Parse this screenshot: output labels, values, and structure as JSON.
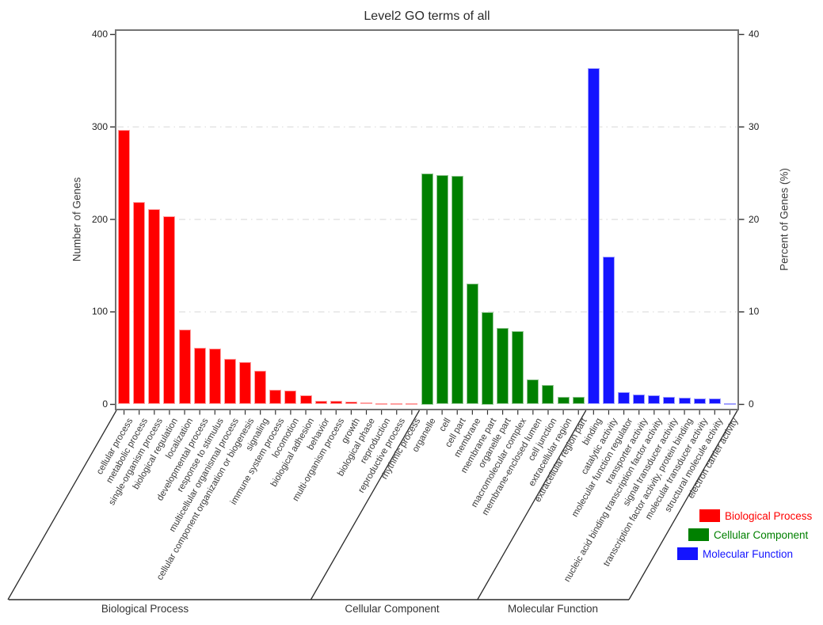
{
  "chart_data": {
    "type": "bar",
    "title": "Level2 GO terms of all",
    "ylabel_left": "Number of Genes",
    "ylabel_right": "Percent of Genes (%)",
    "ylim_left": [
      0,
      400
    ],
    "ylim_right": [
      0,
      40
    ],
    "yticks_left": [
      "0",
      "100",
      "200",
      "300",
      "400"
    ],
    "yticks_right": [
      "0",
      "10",
      "20",
      "30",
      "40"
    ],
    "grid_values": [
      100,
      200,
      300
    ],
    "grid_on": true,
    "legend_position": "bottom-right",
    "groups": [
      {
        "name": "Biological Process",
        "color": "#ff0000",
        "border_color": "#ffa0a0",
        "bars": [
          {
            "label": "cellular process",
            "value": 297
          },
          {
            "label": "metabolic process",
            "value": 219
          },
          {
            "label": "single-organism process",
            "value": 211
          },
          {
            "label": "biological regulation",
            "value": 203
          },
          {
            "label": "localization",
            "value": 81
          },
          {
            "label": "developmental process",
            "value": 61
          },
          {
            "label": "response to stimulus",
            "value": 60
          },
          {
            "label": "multicellular organismal process",
            "value": 49
          },
          {
            "label": "cellular component organization or biogenesis",
            "value": 46
          },
          {
            "label": "signaling",
            "value": 36
          },
          {
            "label": "immune system process",
            "value": 16
          },
          {
            "label": "locomotion",
            "value": 15
          },
          {
            "label": "biological adhesion",
            "value": 10
          },
          {
            "label": "behavior",
            "value": 4
          },
          {
            "label": "multi-organism process",
            "value": 4
          },
          {
            "label": "growth",
            "value": 3
          },
          {
            "label": "biological phase",
            "value": 2
          },
          {
            "label": "reproduction",
            "value": 1
          },
          {
            "label": "reproductive process",
            "value": 1
          },
          {
            "label": "rhythmic process",
            "value": 1
          }
        ]
      },
      {
        "name": "Cellular Component",
        "color": "#008000",
        "border_color": "#94c894",
        "bars": [
          {
            "label": "organelle",
            "value": 250
          },
          {
            "label": "cell",
            "value": 248
          },
          {
            "label": "cell part",
            "value": 247
          },
          {
            "label": "membrane",
            "value": 131
          },
          {
            "label": "membrane part",
            "value": 100
          },
          {
            "label": "organelle part",
            "value": 83
          },
          {
            "label": "macromolecular complex",
            "value": 79
          },
          {
            "label": "membrane-enclosed lumen",
            "value": 27
          },
          {
            "label": "cell junction",
            "value": 21
          },
          {
            "label": "extracellular region",
            "value": 8
          },
          {
            "label": "extracellular region part",
            "value": 8
          }
        ]
      },
      {
        "name": "Molecular Function",
        "color": "#1414ff",
        "border_color": "#a0a0ff",
        "bars": [
          {
            "label": "binding",
            "value": 364
          },
          {
            "label": "catalytic activity",
            "value": 160
          },
          {
            "label": "molecular function regulator",
            "value": 13
          },
          {
            "label": "transporter activity",
            "value": 11
          },
          {
            "label": "nucleic acid binding transcription factor activity",
            "value": 10
          },
          {
            "label": "signal transducer activity",
            "value": 8
          },
          {
            "label": "transcription factor activity, protein binding",
            "value": 7
          },
          {
            "label": "molecular transducer activity",
            "value": 6
          },
          {
            "label": "structural molecule activity",
            "value": 6
          },
          {
            "label": "electron carrier activity",
            "value": 1
          }
        ]
      }
    ],
    "legend": [
      {
        "label": "Biological Process",
        "color": "#ff0000"
      },
      {
        "label": "Cellular Component",
        "color": "#008000"
      },
      {
        "label": "Molecular Function",
        "color": "#1414ff"
      }
    ]
  }
}
